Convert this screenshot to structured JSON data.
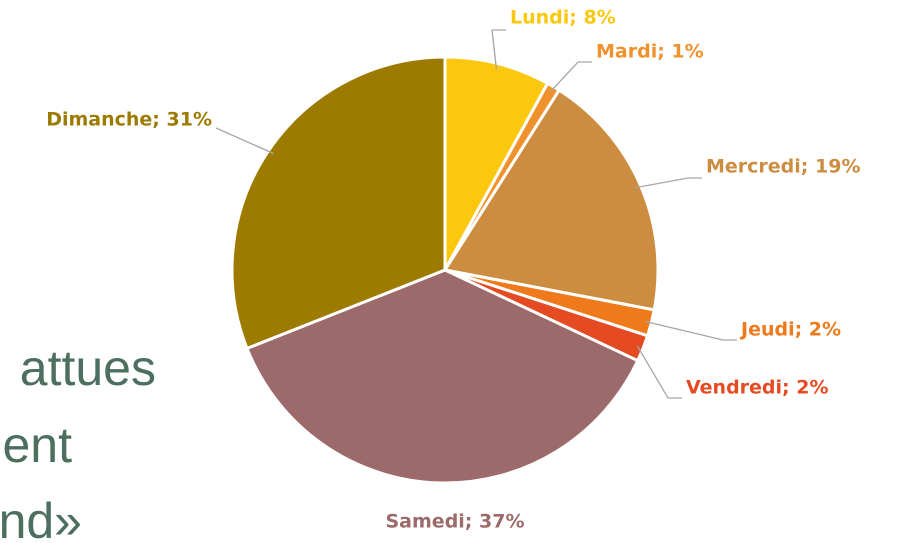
{
  "chart_data": {
    "type": "pie",
    "values": [
      8,
      1,
      19,
      2,
      2,
      37,
      31
    ],
    "value_labels": [
      "Lundi; 8%",
      "Mardi; 1%",
      "Mercredi; 19%",
      "Jeudi; 2%",
      "Vendredi; 2%",
      "Samedi; 37%",
      "Dimanche; 31%"
    ],
    "colors": [
      "#fcc80e",
      "#f0922b",
      "#cd8d40",
      "#ee7a1c",
      "#e54b22",
      "#9c6a6a",
      "#9c7b00"
    ]
  },
  "slide_text": [
    "attues",
    "ent",
    "nd»"
  ]
}
